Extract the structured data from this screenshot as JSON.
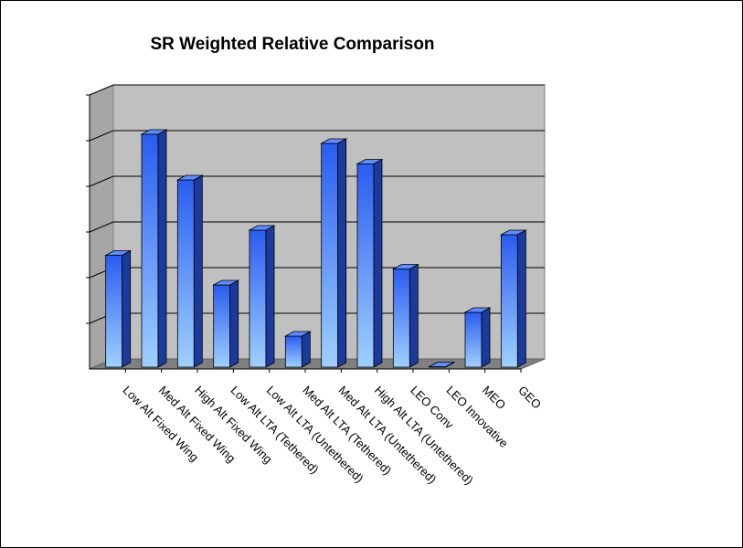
{
  "chart_data": {
    "type": "bar",
    "title": "SR Weighted Relative Comparison",
    "categories": [
      "Low Alt Fixed Wing",
      "Med Alt Fixed Wing",
      "High Alt Fixed Wing",
      "Low Alt LTA (Tethered)",
      "Low Alt LTA (Untethered)",
      "Med Alt LTA (Tethered)",
      "Med Alt LTA (Untethered)",
      "High Alt LTA (Untethered)",
      "LEO Conv",
      "LEO Innovative",
      "MEO",
      "GEO"
    ],
    "values": [
      2.45,
      5.1,
      4.1,
      1.8,
      3.0,
      0.68,
      4.9,
      4.45,
      2.15,
      0.0,
      1.2,
      2.9
    ],
    "ylim": [
      0,
      6
    ],
    "xlabel": "",
    "ylabel": "",
    "grid": true,
    "legend": "none",
    "style": "3d-column",
    "colors": {
      "bar_front_top": "#2a5cf0",
      "bar_front_bottom": "#9fd0ff",
      "bar_side": "#1b3a9c",
      "bar_top": "#5f8bff",
      "wall": "#c0c0c0",
      "floor": "#808080",
      "gridline": "#000000"
    }
  }
}
